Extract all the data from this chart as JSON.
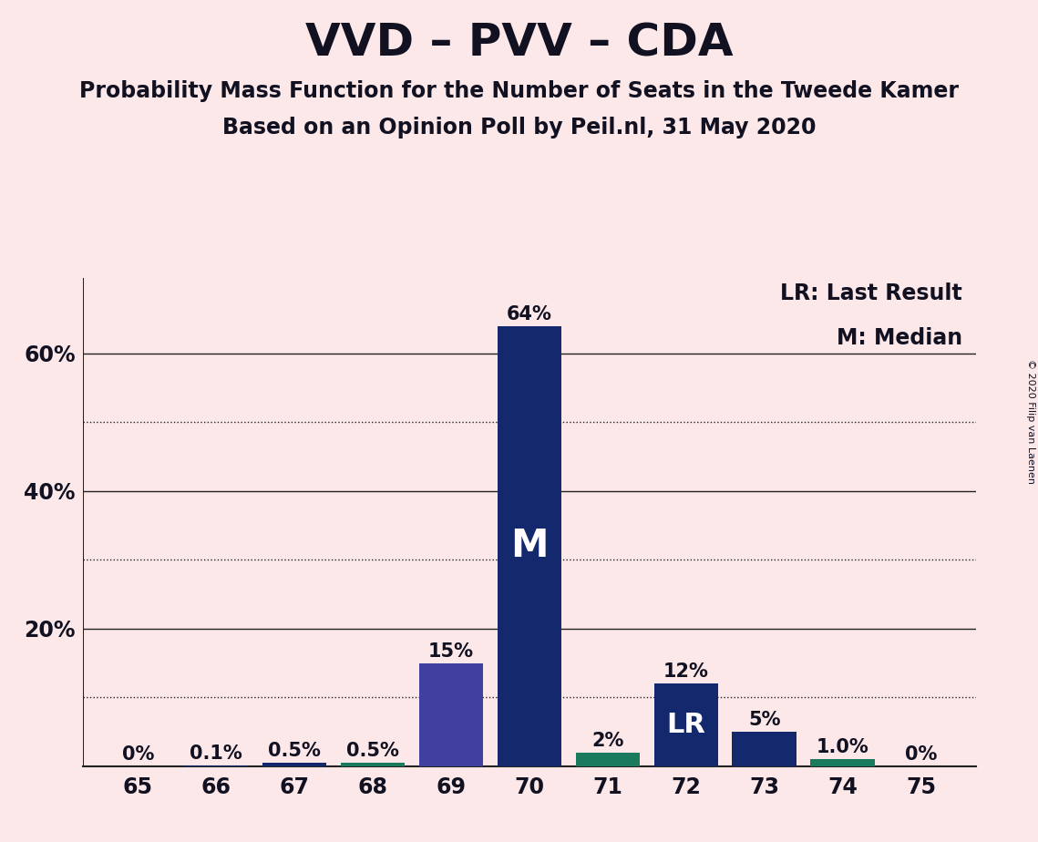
{
  "title": "VVD – PVV – CDA",
  "subtitle1": "Probability Mass Function for the Number of Seats in the Tweede Kamer",
  "subtitle2": "Based on an Opinion Poll by Peil.nl, 31 May 2020",
  "copyright": "© 2020 Filip van Laenen",
  "seats": [
    65,
    66,
    67,
    68,
    69,
    70,
    71,
    72,
    73,
    74,
    75
  ],
  "values": [
    0.0,
    0.001,
    0.005,
    0.005,
    0.15,
    0.64,
    0.02,
    0.12,
    0.05,
    0.01,
    0.0
  ],
  "bar_labels": [
    "0%",
    "0.1%",
    "0.5%",
    "0.5%",
    "15%",
    "64%",
    "2%",
    "12%",
    "5%",
    "1.0%",
    "0%"
  ],
  "bar_color_navy": "#14286e",
  "bar_color_purple": "#4040a0",
  "bar_color_green": "#1a7a5e",
  "median_seat": 70,
  "lr_seat": 72,
  "green_overlay_seats": [
    68,
    71,
    74
  ],
  "green_overlay_values": [
    0.005,
    0.02,
    0.01
  ],
  "background_color": "#fce8e8",
  "grid_solid_ticks": [
    0.2,
    0.4,
    0.6
  ],
  "grid_dotted_ticks": [
    0.1,
    0.3,
    0.5
  ],
  "ytick_positions": [
    0.2,
    0.4,
    0.6
  ],
  "ytick_labels": [
    "20%",
    "40%",
    "60%"
  ],
  "ylim": [
    0,
    0.71
  ],
  "title_fontsize": 36,
  "subtitle_fontsize": 17,
  "bar_label_fontsize": 15,
  "axis_tick_fontsize": 17,
  "annotation_fontsize_M": 30,
  "annotation_fontsize_LR": 22
}
